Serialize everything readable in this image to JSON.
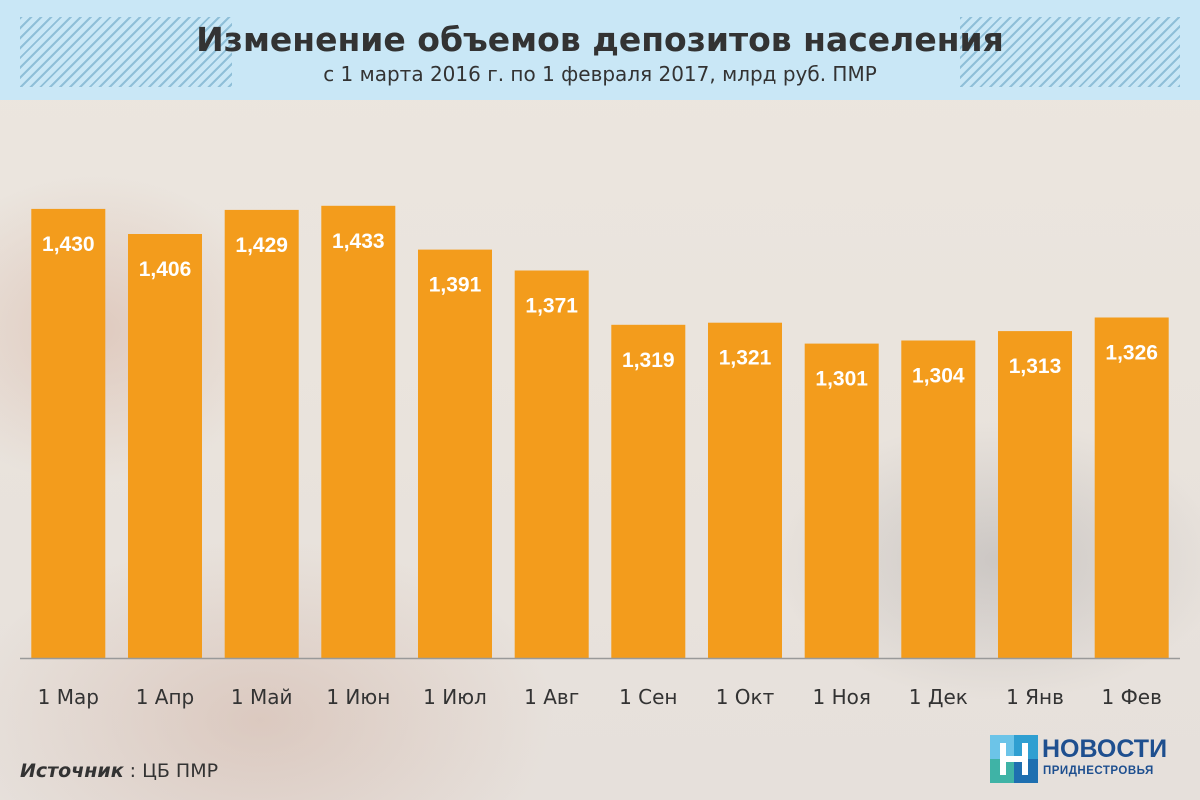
{
  "header": {
    "title": "Изменение объемов депозитов населения",
    "subtitle": "с 1 марта 2016 г. по 1 февраля 2017, млрд руб. ПМР"
  },
  "chart_data": {
    "type": "bar",
    "categories": [
      "1 Мар",
      "1 Апр",
      "1 Май",
      "1 Июн",
      "1 Июл",
      "1 Авг",
      "1 Сен",
      "1 Окт",
      "1 Ноя",
      "1 Дек",
      "1 Янв",
      "1 Фев"
    ],
    "values": [
      1.43,
      1.406,
      1.429,
      1.433,
      1.391,
      1.371,
      1.319,
      1.321,
      1.301,
      1.304,
      1.313,
      1.326
    ],
    "labels": [
      "1,430",
      "1,406",
      "1,429",
      "1,433",
      "1,391",
      "1,371",
      "1,319",
      "1,321",
      "1,301",
      "1,304",
      "1,313",
      "1,326"
    ],
    "title": "Изменение объемов депозитов населения",
    "subtitle": "с 1 марта 2016 г. по 1 февраля 2017, млрд руб. ПМР",
    "xlabel": "",
    "ylabel": "",
    "ylim": [
      1.0,
      1.45
    ],
    "grid": false,
    "bar_color": "#f39c1c",
    "label_color": "#ffffff"
  },
  "source": {
    "label": "Источник",
    "separator": " : ",
    "value": "ЦБ ПМР"
  },
  "logo": {
    "main": "НОВОСТИ",
    "sub": "ПРИДНЕСТРОВЬЯ"
  },
  "colors": {
    "header_bg": "#c9e7f6",
    "stripe": "#8fbfd8",
    "bar": "#f39c1c",
    "axis": "#999999",
    "text": "#333333",
    "logo_blue": "#1e4f8f"
  }
}
